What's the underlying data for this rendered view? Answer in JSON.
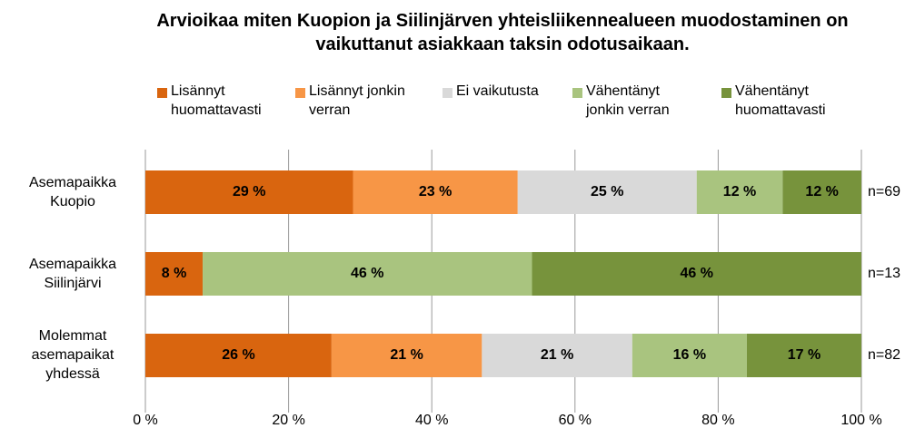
{
  "chart_data": {
    "type": "stacked_barh",
    "title": "Arvioikaa miten Kuopion ja Siilinjärven yhteisliikennealueen muodostaminen  on vaikuttanut asiakkaan taksin odotusaikaan.",
    "categories": [
      "Asemapaikka Kuopio",
      "Asemapaikka Siilinjärvi",
      "Molemmat asemapaikat yhdessä"
    ],
    "annotations": [
      "n=69",
      "n=13",
      "n=82"
    ],
    "series": [
      {
        "name": "Lisännyt huomattavasti",
        "color": "#d9650f",
        "values": [
          29,
          8,
          26
        ],
        "value_labels": [
          "29 %",
          "8 %",
          "26 %"
        ]
      },
      {
        "name": "Lisännyt jonkin verran",
        "color": "#f79646",
        "values": [
          23,
          null,
          21
        ],
        "value_labels": [
          "23 %",
          null,
          "21 %"
        ]
      },
      {
        "name": "Ei vaikutusta",
        "color": "#d9d9d9",
        "values": [
          25,
          null,
          21
        ],
        "value_labels": [
          "25 %",
          null,
          "21 %"
        ]
      },
      {
        "name": "Vähentänyt jonkin verran",
        "color": "#a9c47f",
        "values": [
          12,
          46,
          16
        ],
        "value_labels": [
          "12 %",
          "46 %",
          "16 %"
        ]
      },
      {
        "name": "Vähentänyt huomattavasti",
        "color": "#77933c",
        "values": [
          12,
          46,
          17
        ],
        "value_labels": [
          "12 %",
          "46 %",
          "17 %"
        ]
      }
    ],
    "xlim": [
      0,
      100
    ],
    "xticks": [
      {
        "value": 0,
        "label": "0 %"
      },
      {
        "value": 20,
        "label": "20 %"
      },
      {
        "value": 40,
        "label": "40 %"
      },
      {
        "value": 60,
        "label": "60 %"
      },
      {
        "value": 80,
        "label": "80 %"
      },
      {
        "value": 100,
        "label": "100 %"
      }
    ],
    "grid": true,
    "legend": "top"
  }
}
